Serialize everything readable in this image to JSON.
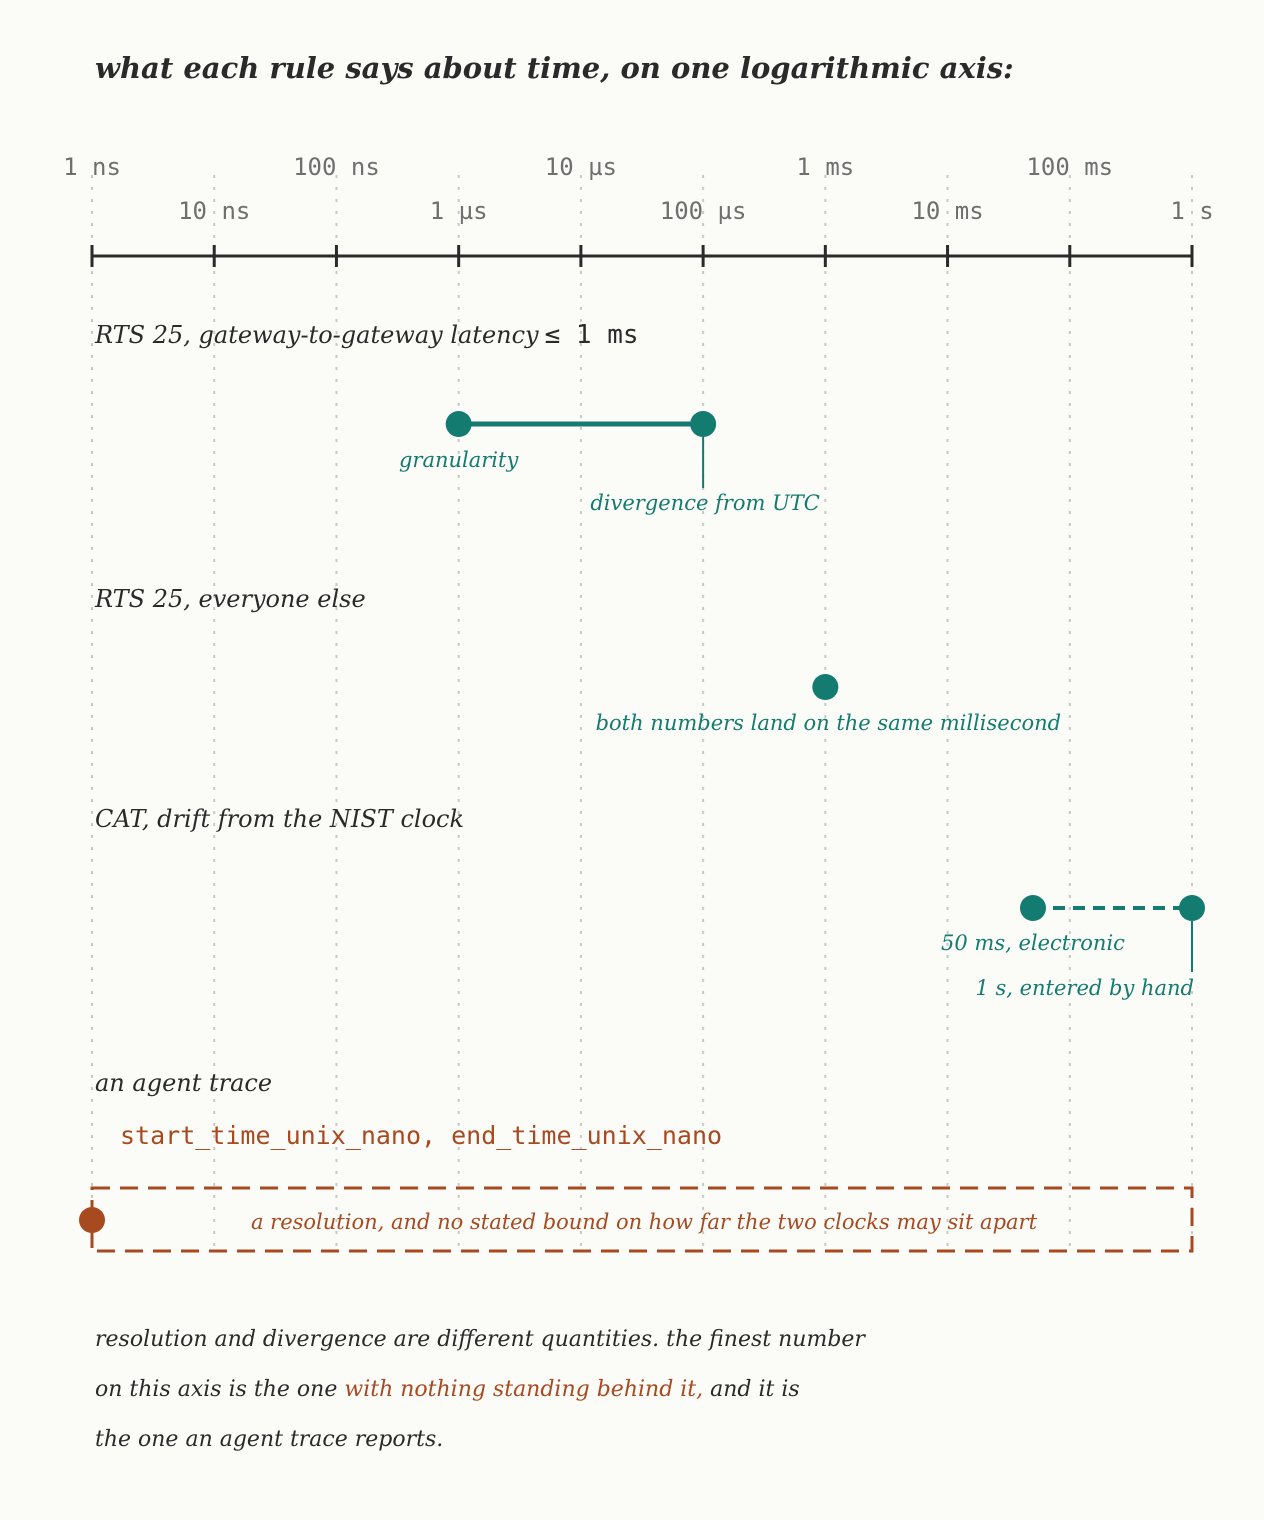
{
  "title": "what each rule says about time, on one logarithmic axis:",
  "axis": {
    "ticks": [
      "1 ns",
      "10 ns",
      "100 ns",
      "1 µs",
      "10 µs",
      "100 µs",
      "1 ms",
      "10 ms",
      "100 ms",
      "1 s"
    ],
    "scale": "log10",
    "unit": "seconds",
    "range": [
      1e-09,
      1
    ]
  },
  "rows": [
    {
      "label": "RTS 25, gateway-to-gateway latency",
      "label_suffix": "≤ 1 ms",
      "points": [
        {
          "value": "1 µs",
          "note": "granularity"
        },
        {
          "value": "100 µs",
          "note": "divergence from UTC"
        }
      ],
      "connector": "solid",
      "color": "#137b6f"
    },
    {
      "label": "RTS 25, everyone else",
      "points": [
        {
          "value": "1 ms",
          "note": "both numbers land on the same millisecond"
        }
      ],
      "color": "#137b6f"
    },
    {
      "label": "CAT, drift from the NIST clock",
      "points": [
        {
          "value": "50 ms",
          "note": "50 ms, electronic"
        },
        {
          "value": "1 s",
          "note": "1 s, entered by hand"
        }
      ],
      "connector": "dashed",
      "color": "#137b6f"
    },
    {
      "label": "an agent trace",
      "fields": "start_time_unix_nano, end_time_unix_nano",
      "points": [
        {
          "value": "1 ns"
        }
      ],
      "box_note": "a resolution, and no stated bound on how far the two clocks may sit apart",
      "color": "#a84a20"
    }
  ],
  "caption": {
    "line1": "resolution and divergence are different quantities. the finest number",
    "line2_before": "on this axis is the one ",
    "line2_emphasis": "with nothing standing behind it,",
    "line2_after": " and it is",
    "line3": "the one an agent trace reports."
  },
  "colors": {
    "background": "#fbfbf7",
    "ink": "#2a2a2a",
    "teal": "#137b6f",
    "rust": "#a84a20",
    "tick_text": "#6f6f6f",
    "grid": "#c8c8c4"
  }
}
